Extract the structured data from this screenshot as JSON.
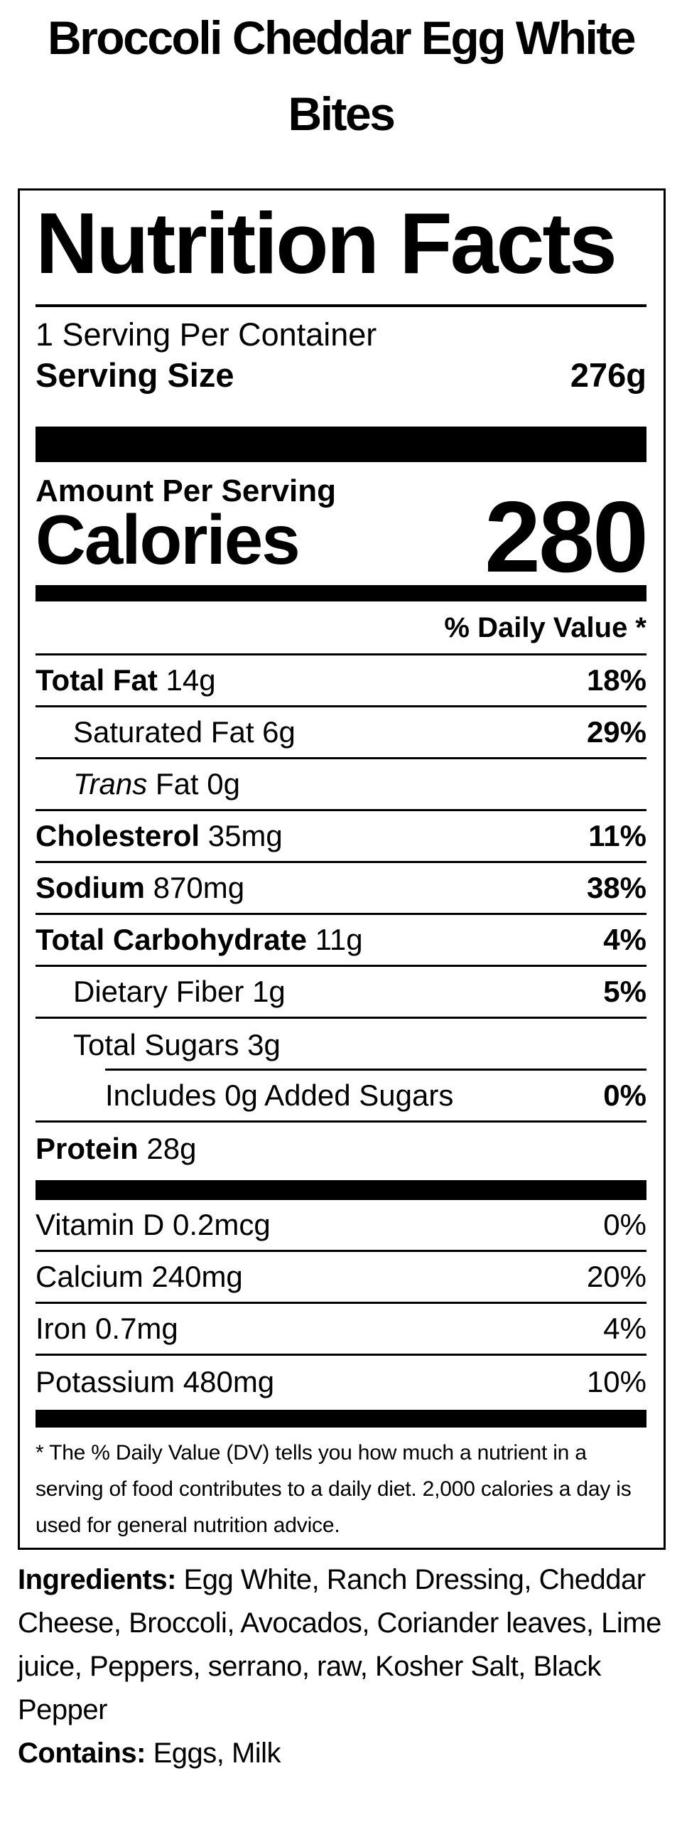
{
  "product": {
    "title": "Broccoli Cheddar Egg White Bites"
  },
  "label": {
    "heading": "Nutrition Facts",
    "servings_per_container": "1 Serving Per Container",
    "serving_size_label": "Serving Size",
    "serving_size_value": "276g",
    "amount_per_serving": "Amount Per Serving",
    "calories_label": "Calories",
    "calories_value": "280",
    "daily_value_header": "% Daily Value *",
    "rows": [
      {
        "label": "Total Fat",
        "amount": "14g",
        "dv": "18%",
        "label_bold": true,
        "indent": 0,
        "dv_bold": true,
        "separator": "full"
      },
      {
        "label": "Saturated Fat",
        "amount": "6g",
        "dv": "29%",
        "label_bold": false,
        "indent": 1,
        "dv_bold": true,
        "separator": "full"
      },
      {
        "label": "Trans Fat",
        "amount": "0g",
        "dv": "",
        "label_bold": false,
        "label_italic_first": true,
        "indent": 1,
        "dv_bold": true,
        "separator": "full"
      },
      {
        "label": "Cholesterol",
        "amount": "35mg",
        "dv": "11%",
        "label_bold": true,
        "indent": 0,
        "dv_bold": true,
        "separator": "full"
      },
      {
        "label": "Sodium",
        "amount": "870mg",
        "dv": "38%",
        "label_bold": true,
        "indent": 0,
        "dv_bold": true,
        "separator": "full"
      },
      {
        "label": "Total Carbohydrate",
        "amount": "11g",
        "dv": "4%",
        "label_bold": true,
        "indent": 0,
        "dv_bold": true,
        "separator": "full"
      },
      {
        "label": "Dietary Fiber",
        "amount": "1g",
        "dv": "5%",
        "label_bold": false,
        "indent": 1,
        "dv_bold": true,
        "separator": "full"
      },
      {
        "label": "Total Sugars",
        "amount": "3g",
        "dv": "",
        "label_bold": false,
        "indent": 1,
        "dv_bold": true,
        "separator": "indent"
      },
      {
        "label": "Includes 0g Added Sugars",
        "amount": "",
        "dv": "0%",
        "label_bold": false,
        "indent": 2,
        "dv_bold": true,
        "separator": "full"
      },
      {
        "label": "Protein",
        "amount": "28g",
        "dv": "",
        "label_bold": true,
        "indent": 0,
        "dv_bold": true,
        "separator": "none"
      }
    ],
    "vitamins": [
      {
        "label": "Vitamin D",
        "amount": "0.2mcg",
        "dv": "0%",
        "label_bold": false,
        "indent": 0,
        "dv_bold": false,
        "separator": "full"
      },
      {
        "label": "Calcium",
        "amount": "240mg",
        "dv": "20%",
        "label_bold": false,
        "indent": 0,
        "dv_bold": false,
        "separator": "full"
      },
      {
        "label": "Iron",
        "amount": "0.7mg",
        "dv": "4%",
        "label_bold": false,
        "indent": 0,
        "dv_bold": false,
        "separator": "full"
      },
      {
        "label": "Potassium",
        "amount": "480mg",
        "dv": "10%",
        "label_bold": false,
        "indent": 0,
        "dv_bold": false,
        "separator": "none"
      }
    ],
    "footnote": "* The % Daily Value (DV) tells you how much a nutrient in a serving of food contributes to a daily diet. 2,000 calories a day is used for general nutrition advice."
  },
  "ingredients": {
    "label": "Ingredients:",
    "text": "Egg White, Ranch Dressing, Cheddar Cheese, Broccoli, Avocados, Coriander leaves, Lime juice, Peppers, serrano, raw, Kosher Salt, Black Pepper"
  },
  "contains": {
    "label": "Contains:",
    "text": "Eggs, Milk"
  },
  "colors": {
    "text": "#000000",
    "background": "#ffffff"
  }
}
